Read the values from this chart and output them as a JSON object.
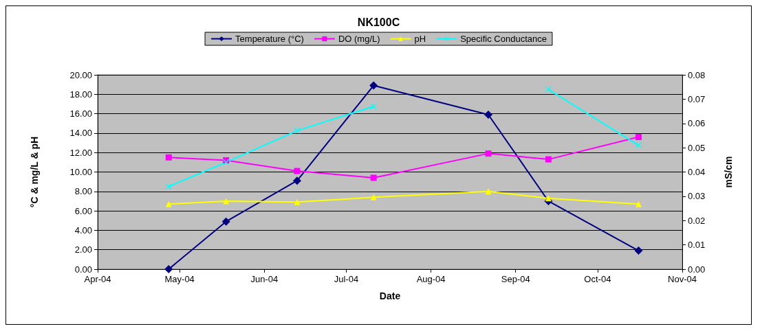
{
  "chart_data": {
    "type": "line",
    "title": "NK100C",
    "xlabel": "Date",
    "ylabel": "°C & mg/L & pH",
    "y2label": "mS/cm",
    "x": [
      "2004-04-27",
      "2004-05-18",
      "2004-06-13",
      "2004-07-11",
      "2004-08-22",
      "2004-09-13",
      "2004-10-16"
    ],
    "series": [
      {
        "name": "Temperature (°C)",
        "color": "#000080",
        "marker": "diamond",
        "values": [
          0,
          4.9,
          9.1,
          18.9,
          15.9,
          7.0,
          1.9
        ]
      },
      {
        "name": "DO (mg/L)",
        "color": "#ff00ff",
        "marker": "square",
        "values": [
          11.5,
          11.2,
          10.1,
          9.4,
          11.9,
          11.3,
          13.6
        ]
      },
      {
        "name": "pH",
        "color": "#ffff00",
        "marker": "triangle",
        "values": [
          6.7,
          7.0,
          6.9,
          7.4,
          8.0,
          7.3,
          6.7
        ]
      },
      {
        "name": "Specific Conductance",
        "color": "#00ffff",
        "marker": "cross",
        "axis": "y2",
        "values": [
          0.034,
          0.044,
          0.057,
          0.067,
          null,
          0.074,
          0.051
        ]
      }
    ],
    "xlim": [
      "2004-04-01",
      "2004-11-01"
    ],
    "xticks": [
      {
        "value": "2004-04-01",
        "label": "Apr-04"
      },
      {
        "value": "2004-05-01",
        "label": "May-04"
      },
      {
        "value": "2004-06-01",
        "label": "Jun-04"
      },
      {
        "value": "2004-07-01",
        "label": "Jul-04"
      },
      {
        "value": "2004-08-01",
        "label": "Aug-04"
      },
      {
        "value": "2004-09-01",
        "label": "Sep-04"
      },
      {
        "value": "2004-10-01",
        "label": "Oct-04"
      },
      {
        "value": "2004-11-01",
        "label": "Nov-04"
      }
    ],
    "ylim": [
      0,
      20
    ],
    "yticks": [
      {
        "value": 0,
        "label": "0.00"
      },
      {
        "value": 2,
        "label": "2.00"
      },
      {
        "value": 4,
        "label": "4.00"
      },
      {
        "value": 6,
        "label": "6.00"
      },
      {
        "value": 8,
        "label": "8.00"
      },
      {
        "value": 10,
        "label": "10.00"
      },
      {
        "value": 12,
        "label": "12.00"
      },
      {
        "value": 14,
        "label": "14.00"
      },
      {
        "value": 16,
        "label": "16.00"
      },
      {
        "value": 18,
        "label": "18.00"
      },
      {
        "value": 20,
        "label": "20.00"
      }
    ],
    "y2lim": [
      0,
      0.08
    ],
    "y2ticks": [
      {
        "value": 0,
        "label": "0.00"
      },
      {
        "value": 0.01,
        "label": "0.01"
      },
      {
        "value": 0.02,
        "label": "0.02"
      },
      {
        "value": 0.03,
        "label": "0.03"
      },
      {
        "value": 0.04,
        "label": "0.04"
      },
      {
        "value": 0.05,
        "label": "0.05"
      },
      {
        "value": 0.06,
        "label": "0.06"
      },
      {
        "value": 0.07,
        "label": "0.07"
      },
      {
        "value": 0.08,
        "label": "0.08"
      }
    ],
    "grid": "y",
    "legend": "top",
    "line_style": "solid"
  }
}
